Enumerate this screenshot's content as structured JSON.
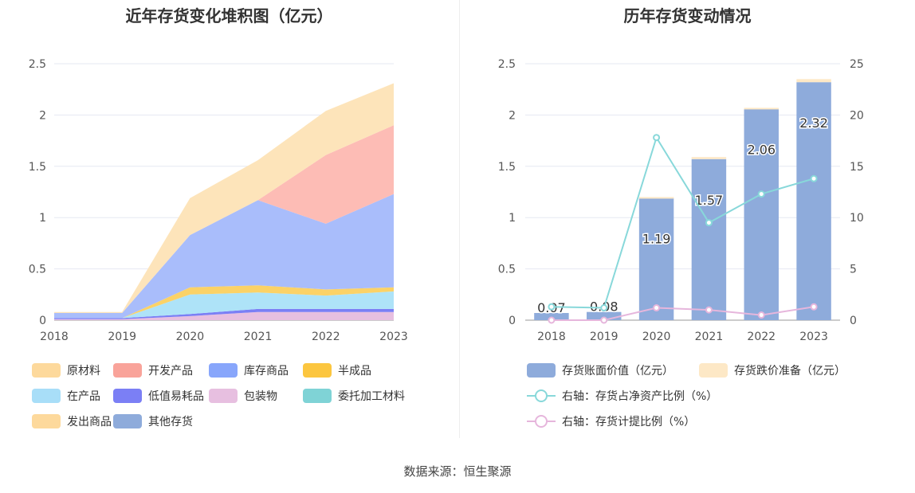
{
  "chart_data": [
    {
      "type": "area",
      "title": "近年存货变化堆积图（亿元）",
      "categories": [
        "2018",
        "2019",
        "2020",
        "2021",
        "2022",
        "2023"
      ],
      "ylim": [
        0,
        2.5
      ],
      "yticks": [
        "0",
        "0.5",
        "1",
        "1.5",
        "2",
        "2.5"
      ],
      "stacked": true,
      "grid": true,
      "legend_position": "bottom",
      "series": [
        {
          "name": "其他存货",
          "color": "#8eabdb",
          "values": [
            0,
            0,
            0,
            0,
            0,
            0
          ]
        },
        {
          "name": "包装物",
          "color": "#e7bfe0",
          "values": [
            0.01,
            0.01,
            0.04,
            0.08,
            0.08,
            0.08
          ]
        },
        {
          "name": "低值易耗品",
          "color": "#7b7ff5",
          "values": [
            0.01,
            0.01,
            0.02,
            0.03,
            0.03,
            0.03
          ]
        },
        {
          "name": "在产品",
          "color": "#aee3f8",
          "values": [
            0,
            0,
            0.19,
            0.16,
            0.13,
            0.17
          ]
        },
        {
          "name": "委托加工材料",
          "color": "#7fd3d6",
          "values": [
            0,
            0,
            0,
            0,
            0,
            0
          ]
        },
        {
          "name": "半成品",
          "color": "#fbd267",
          "values": [
            0,
            0,
            0.07,
            0.07,
            0.06,
            0.04
          ]
        },
        {
          "name": "库存商品",
          "color": "#a9bdfb",
          "values": [
            0.05,
            0.05,
            0.51,
            0.83,
            0.64,
            0.91
          ]
        },
        {
          "name": "开发产品",
          "color": "#fdbcb5",
          "values": [
            0,
            0,
            0,
            0,
            0.67,
            0.67
          ]
        },
        {
          "name": "发出商品",
          "color": "#fde0b0",
          "values": [
            0,
            0,
            0,
            0,
            0,
            0
          ]
        },
        {
          "name": "原材料",
          "color": "#fde4ba",
          "values": [
            0.01,
            0.01,
            0.36,
            0.39,
            0.43,
            0.41
          ]
        }
      ],
      "legend": [
        {
          "name": "原材料",
          "color": "#fdd99c"
        },
        {
          "name": "开发产品",
          "color": "#f9a39a"
        },
        {
          "name": "库存商品",
          "color": "#88a6fb"
        },
        {
          "name": "半成品",
          "color": "#fcc63f"
        },
        {
          "name": "在产品",
          "color": "#a8def8"
        },
        {
          "name": "低值易耗品",
          "color": "#7b7ff5"
        },
        {
          "name": "包装物",
          "color": "#e7bfe0"
        },
        {
          "name": "委托加工材料",
          "color": "#7fd3d6"
        },
        {
          "name": "发出商品",
          "color": "#fdd99c"
        },
        {
          "name": "其他存货",
          "color": "#8eabdb"
        }
      ]
    },
    {
      "type": "bar",
      "title": "历年存货变动情况",
      "categories": [
        "2018",
        "2019",
        "2020",
        "2021",
        "2022",
        "2023"
      ],
      "ylim": [
        0,
        2.5
      ],
      "yticks": [
        "0",
        "0.5",
        "1",
        "1.5",
        "2",
        "2.5"
      ],
      "y2lim": [
        0,
        25
      ],
      "y2ticks": [
        "0",
        "5",
        "10",
        "15",
        "20",
        "25"
      ],
      "grid": true,
      "legend_position": "bottom",
      "bar_series": [
        {
          "name": "存货账面价值（亿元）",
          "color": "#8eabdb",
          "values": [
            0.07,
            0.08,
            1.19,
            1.57,
            2.06,
            2.32
          ],
          "labels": [
            "0.07",
            "0.08",
            "1.19",
            "1.57",
            "2.06",
            "2.32"
          ]
        },
        {
          "name": "存货跌价准备（亿元）",
          "color": "#fde8c6",
          "values": [
            0.0,
            0.0,
            0.01,
            0.02,
            0.01,
            0.03
          ]
        }
      ],
      "line_series": [
        {
          "name": "右轴：存货占净资产比例（%）",
          "color": "#88d8da",
          "values": [
            1.3,
            1.2,
            17.8,
            9.5,
            12.3,
            13.8
          ]
        },
        {
          "name": "右轴：存货计提比例（%）",
          "color": "#e6b6dc",
          "values": [
            0,
            0,
            1.2,
            1.0,
            0.5,
            1.3
          ]
        }
      ]
    }
  ],
  "source": "数据来源：恒生聚源"
}
